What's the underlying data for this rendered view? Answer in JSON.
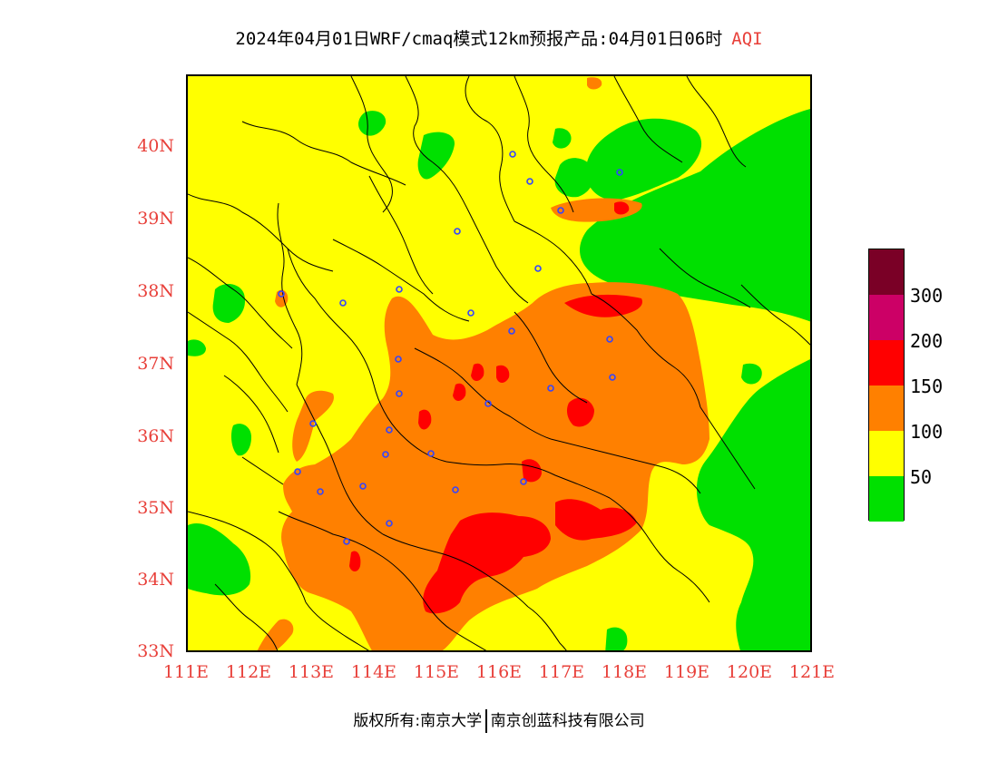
{
  "title": {
    "main": "2024年04月01日WRF/cmaq模式12km预报产品:04月01日06时",
    "suffix": "AQI"
  },
  "axes": {
    "y_labels": [
      "40N",
      "39N",
      "38N",
      "37N",
      "36N",
      "35N",
      "34N",
      "33N"
    ],
    "x_labels": [
      "111E",
      "112E",
      "113E",
      "114E",
      "115E",
      "116E",
      "117E",
      "118E",
      "119E",
      "120E",
      "121E"
    ]
  },
  "legend": {
    "colors": [
      "#7a0026",
      "#cc0066",
      "#ff0000",
      "#ff8000",
      "#ffff00",
      "#00e000"
    ],
    "labels": [
      "300",
      "200",
      "150",
      "100",
      "50"
    ]
  },
  "colors": {
    "good": "#00e000",
    "moderate": "#ffff00",
    "usg": "#ff8000",
    "unhealthy": "#ff0000",
    "axis_text": "#e8403a"
  },
  "credit": {
    "left": "版权所有:南京大学",
    "right": "南京创蓝科技有限公司"
  }
}
